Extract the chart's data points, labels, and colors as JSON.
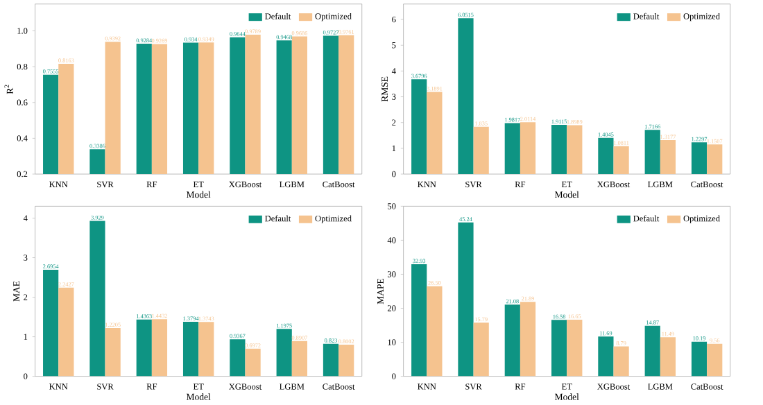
{
  "chart_data": [
    {
      "type": "bar",
      "xlabel": "Model",
      "ylabel": "R$^{2}$",
      "categories": [
        "KNN",
        "SVR",
        "RF",
        "ET",
        "XGBoost",
        "LGBM",
        "CatBoost"
      ],
      "legend": "top right",
      "ylim": [
        0.2,
        1.15
      ],
      "yticks": [
        0.2,
        0.4,
        0.6,
        0.8,
        {
          "value": 1.0,
          "label": "1.0"
        }
      ],
      "series": [
        {
          "name": "Default",
          "color": "#0e9483",
          "values": [
            0.7555,
            0.3386,
            0.9284,
            0.934,
            0.9644,
            0.9468,
            0.9727
          ],
          "value_labels": [
            "0.7555",
            "0.3386",
            "0.9284",
            "0.934",
            "0.9644",
            "0.9468",
            "0.9727"
          ]
        },
        {
          "name": "Optimized",
          "color": "#f5c38f",
          "values": [
            0.8163,
            0.9392,
            0.9269,
            0.9349,
            0.9789,
            0.9686,
            0.9761
          ],
          "value_labels": [
            "0.8163",
            "0.9392",
            "0.9269",
            "0.9349",
            "0.9789",
            "0.9686",
            "0.9761"
          ]
        }
      ]
    },
    {
      "type": "bar",
      "xlabel": "Model",
      "ylabel": "RMSE",
      "categories": [
        "KNN",
        "SVR",
        "RF",
        "ET",
        "XGBoost",
        "LGBM",
        "CatBoost"
      ],
      "legend": "top right",
      "ylim": [
        0,
        6.6
      ],
      "yticks": [
        0,
        1,
        2,
        3,
        4,
        5,
        6
      ],
      "series": [
        {
          "name": "Default",
          "color": "#0e9483",
          "values": [
            3.6796,
            6.0515,
            1.9817,
            1.9115,
            1.4045,
            1.7166,
            1.2297
          ],
          "value_labels": [
            "3.6796",
            "6.0515",
            "1.9817",
            "1.9115",
            "1.4045",
            "1.7166",
            "1.2297"
          ]
        },
        {
          "name": "Optimized",
          "color": "#f5c38f",
          "values": [
            3.1891,
            1.835,
            2.0114,
            1.8989,
            1.0811,
            1.3177,
            1.1507
          ],
          "value_labels": [
            "3.1891",
            "1.835",
            "2.0114",
            "1.8989",
            "1.0811",
            "1.3177",
            "1.1507"
          ]
        }
      ]
    },
    {
      "type": "bar",
      "xlabel": "Model",
      "ylabel": "MAE",
      "categories": [
        "KNN",
        "SVR",
        "RF",
        "ET",
        "XGBoost",
        "LGBM",
        "CatBoost"
      ],
      "legend": "top right",
      "ylim": [
        0,
        4.3
      ],
      "yticks": [
        0,
        1,
        2,
        3,
        4
      ],
      "series": [
        {
          "name": "Default",
          "color": "#0e9483",
          "values": [
            2.6954,
            3.929,
            1.4363,
            1.3794,
            0.9367,
            1.1975,
            0.823
          ],
          "value_labels": [
            "2.6954",
            "3.929",
            "1.4363",
            "1.3794",
            "0.9367",
            "1.1975",
            "0.823"
          ]
        },
        {
          "name": "Optimized",
          "color": "#f5c38f",
          "values": [
            2.2427,
            1.2205,
            1.4432,
            1.3743,
            0.6972,
            0.8907,
            0.8002
          ],
          "value_labels": [
            "2.2427",
            "1.2205",
            "1.4432",
            "1.3743",
            "0.6972",
            "0.8907",
            "0.8002"
          ]
        }
      ]
    },
    {
      "type": "bar",
      "xlabel": "Model",
      "ylabel": "MAPE",
      "categories": [
        "KNN",
        "SVR",
        "RF",
        "ET",
        "XGBoost",
        "LGBM",
        "CatBoost"
      ],
      "legend": "top right",
      "ylim": [
        0,
        50
      ],
      "yticks": [
        0,
        10,
        20,
        30,
        40,
        50
      ],
      "series": [
        {
          "name": "Default",
          "color": "#0e9483",
          "values": [
            32.93,
            45.24,
            21.08,
            16.58,
            11.69,
            14.87,
            10.19
          ],
          "value_labels": [
            "32.93",
            "45.24",
            "21.08",
            "16.58",
            "11.69",
            "14.87",
            "10.19"
          ]
        },
        {
          "name": "Optimized",
          "color": "#f5c38f",
          "values": [
            26.5,
            15.79,
            21.89,
            16.65,
            8.79,
            11.49,
            9.56
          ],
          "value_labels": [
            "26.50",
            "15.79",
            "21.89",
            "16.65",
            "8.79",
            "11.49",
            "9.56"
          ]
        }
      ]
    }
  ]
}
